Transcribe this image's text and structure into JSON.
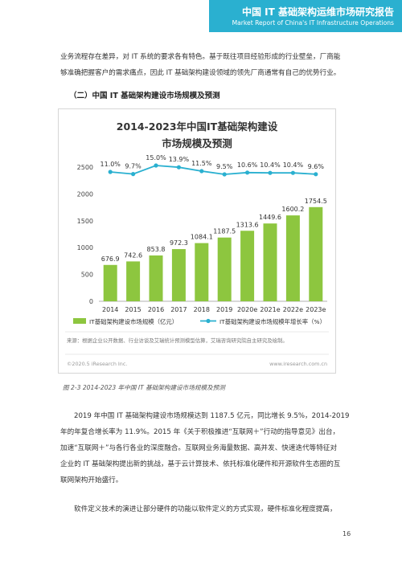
{
  "header": {
    "title": "中国 IT 基础架构运维市场研究报告",
    "subtitle": "Market Report of China's IT Infrastructure Operations"
  },
  "intro": {
    "line1": "业务流程存在差异，对 IT 系统的要求各有特色。基于既往项目经验形成的行业壁垒，厂商能",
    "line2": "够准确把握客户的需求痛点，因此 IT 基础架构建设领域的领先厂商通常有自己的优势行业。"
  },
  "section_heading": "（二）中国 IT 基础架构建设市场规模及预测",
  "chart_data": {
    "type": "bar",
    "title_line1": "2014-2023年中国IT基础架构建设",
    "title_line2": "市场规模及预测",
    "categories": [
      "2014",
      "2015",
      "2016",
      "2017",
      "2018",
      "2019",
      "2020e",
      "2021e",
      "2022e",
      "2023e"
    ],
    "series": [
      {
        "name": "IT基础架构建设市场规模（亿元）",
        "type": "bar",
        "values": [
          676.9,
          742.6,
          853.8,
          972.3,
          1084.1,
          1187.5,
          1313.6,
          1449.6,
          1600.2,
          1754.5
        ]
      },
      {
        "name": "IT基础架构建设市场规模年增长率（%）",
        "type": "line",
        "values": [
          11.0,
          9.7,
          15.0,
          13.9,
          11.5,
          9.5,
          10.6,
          10.4,
          10.4,
          9.6
        ]
      }
    ],
    "bar_labels": [
      "676.9",
      "742.6",
      "853.8",
      "972.3",
      "1084.1",
      "1187.5",
      "1313.6",
      "1449.6",
      "1600.2",
      "1754.5"
    ],
    "line_labels": [
      "11.0%",
      "9.7%",
      "15.0%",
      "13.9%",
      "11.5%",
      "9.5%",
      "10.6%",
      "10.4%",
      "10.4%",
      "9.6%"
    ],
    "y_ticks": [
      "0",
      "500",
      "1000",
      "1500",
      "2000",
      "2500"
    ],
    "ylim": [
      0,
      2500
    ],
    "colors": {
      "bar": "#8dc63f",
      "line": "#2ab0d0",
      "title": "#333333"
    },
    "source_note": "来源：根据企业公开数据、行业访谈及艾瑞统计预测模型估算，艾瑞咨询研究院自主研究及绘制。",
    "footer_left": "©2020.5 iResearch Inc.",
    "footer_right": "www.iresearch.com.cn"
  },
  "caption": "图 2-3 2014-2023 年中国 IT 基础架构建设市场规模及预测",
  "body": {
    "p1_l1": "2019 年中国 IT 基础架构建设市场规模达到 1187.5 亿元，同比增长 9.5%，2014-2019",
    "p1_l2": "年的年复合增长率为 11.9%。2015 年《关于积极推进“互联网＋”行动的指导意见》出台，",
    "p1_l3": "加速“互联网＋”与各行各业的深度融合。互联网业务海量数据、高并发、快速迭代等特征对",
    "p1_l4": "企业的 IT 基础架构提出新的挑战，基于云计算技术、依托标准化硬件和开源软件生态圈的互",
    "p1_l5": "联网架构开始盛行。",
    "p2_l1": "软件定义技术的演进让部分硬件的功能以软件定义的方式实现，硬件标准化程度提高，"
  },
  "page_number": "16"
}
